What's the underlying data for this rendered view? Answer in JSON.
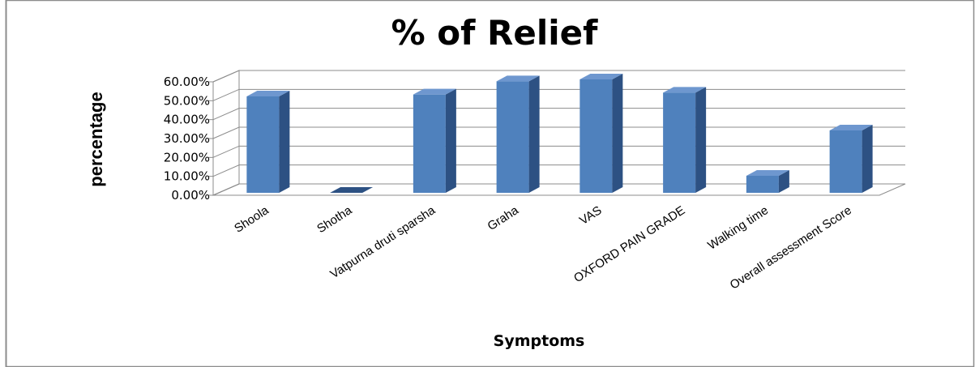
{
  "chart_data": {
    "type": "bar",
    "title": "% of Relief",
    "xlabel": "Symptoms",
    "ylabel": "percentage",
    "categories": [
      "Shoola",
      "Shotha",
      "Vatpurna druti sparsha",
      "Graha",
      "VAS",
      "OXFORD PAIN GRADE",
      "Walking time",
      "Overall assessment Score"
    ],
    "values": [
      0.51,
      0.0,
      0.52,
      0.59,
      0.6,
      0.53,
      0.09,
      0.33
    ],
    "ylim": [
      0,
      0.6
    ],
    "yticks": [
      "0.00%",
      "10.00%",
      "20.00%",
      "30.00%",
      "40.00%",
      "50.00%",
      "60.00%"
    ],
    "style": "3d-column",
    "grid": true,
    "legend": "none",
    "colors": {
      "bar_front": "#4f81bd",
      "bar_side": "#2d5183",
      "bar_top": "#6e97cf",
      "grid": "#8c8c8c",
      "frame": "#8c8c8c"
    }
  }
}
